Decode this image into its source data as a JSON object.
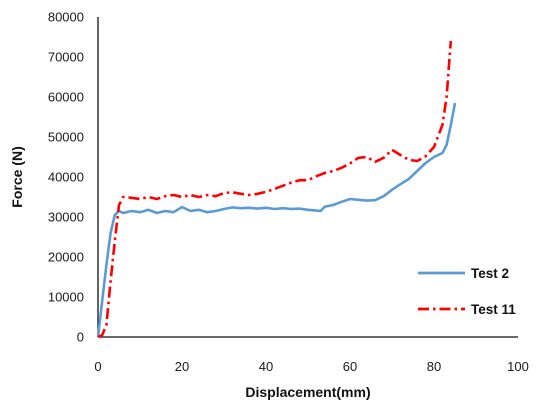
{
  "chart_data": {
    "type": "line",
    "title": "",
    "xlabel": "Displacement(mm)",
    "ylabel": "Force (N)",
    "xlim": [
      0,
      100
    ],
    "ylim": [
      0,
      80000
    ],
    "x_ticks": [
      0,
      20,
      40,
      60,
      80,
      100
    ],
    "y_ticks": [
      0,
      10000,
      20000,
      30000,
      40000,
      50000,
      60000,
      70000,
      80000
    ],
    "grid": false,
    "legend_position": "bottom-right",
    "series": [
      {
        "name": "Test 2",
        "color": "#5b9bd5",
        "line_style": "solid",
        "x": [
          0,
          1,
          2,
          3,
          4,
          5,
          6,
          8,
          10,
          12,
          14,
          16,
          18,
          20,
          22,
          24,
          26,
          28,
          30,
          32,
          34,
          36,
          38,
          40,
          42,
          44,
          46,
          48,
          50,
          52,
          53,
          54,
          56,
          58,
          60,
          62,
          64,
          66,
          68,
          70,
          72,
          74,
          76,
          78,
          80,
          82,
          83,
          84,
          85
        ],
        "y": [
          0,
          9000,
          18000,
          26000,
          30500,
          31500,
          31000,
          31500,
          31200,
          31800,
          31000,
          31500,
          31200,
          32500,
          31500,
          31800,
          31200,
          31500,
          32000,
          32400,
          32200,
          32300,
          32100,
          32300,
          32000,
          32200,
          32000,
          32100,
          31800,
          31600,
          31500,
          32600,
          33000,
          33800,
          34500,
          34300,
          34100,
          34200,
          35200,
          36800,
          38200,
          39500,
          41500,
          43500,
          45000,
          46000,
          48000,
          53000,
          58500
        ]
      },
      {
        "name": "Test 11",
        "color": "#ff0000",
        "line_style": "dash-dot",
        "x": [
          0,
          1,
          2,
          3,
          4,
          5,
          6,
          8,
          10,
          12,
          14,
          16,
          18,
          20,
          22,
          24,
          26,
          28,
          30,
          32,
          34,
          36,
          38,
          40,
          42,
          44,
          46,
          48,
          50,
          52,
          54,
          56,
          58,
          60,
          62,
          64,
          66,
          68,
          70,
          72,
          74,
          76,
          78,
          80,
          82,
          83,
          84
        ],
        "y": [
          0,
          500,
          3000,
          14000,
          24000,
          33000,
          35000,
          34800,
          34500,
          35000,
          34500,
          35200,
          35500,
          35000,
          35500,
          35000,
          35500,
          35200,
          36000,
          36200,
          35800,
          35500,
          35800,
          36300,
          37000,
          37800,
          38600,
          39200,
          39200,
          40200,
          41000,
          41500,
          42300,
          43400,
          44800,
          45000,
          43800,
          44800,
          46800,
          45500,
          44300,
          44000,
          45200,
          47500,
          53000,
          60000,
          74000
        ]
      }
    ]
  }
}
